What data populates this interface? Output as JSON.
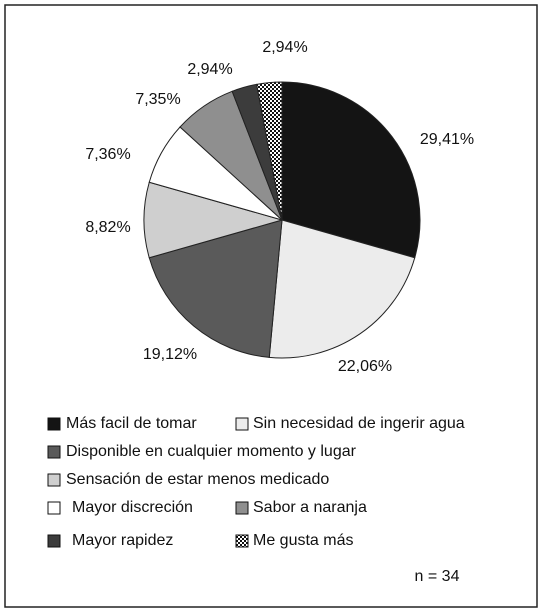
{
  "chart_data": {
    "type": "pie",
    "categories": [
      "Más facil de tomar",
      "Sin necesidad de ingerir agua",
      "Disponible en cualquier momento y lugar",
      "Sensación de estar menos medicado",
      "Mayor discreción",
      "Sabor a naranja",
      "Mayor rapidez",
      "Me gusta más"
    ],
    "values": [
      29.41,
      22.06,
      19.12,
      8.82,
      7.36,
      7.35,
      2.94,
      2.94
    ],
    "value_labels": [
      "29,41%",
      "22,06%",
      "19,12%",
      "8,82%",
      "7,36%",
      "7,35%",
      "2,94%",
      "2,94%"
    ],
    "colors": [
      "#141414",
      "#ececec",
      "#5a5a5a",
      "#cfcfcf",
      "#ffffff",
      "#8f8f8f",
      "#3c3c3c",
      "url(#checker)"
    ],
    "annotation": "n = 34"
  }
}
